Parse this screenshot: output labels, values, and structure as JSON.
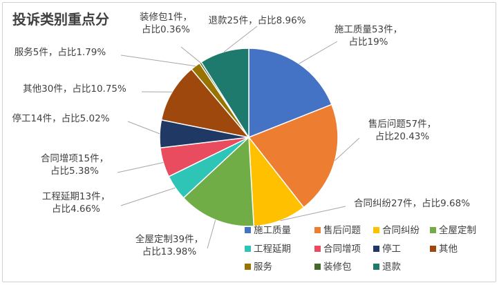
{
  "chart_data": {
    "type": "pie",
    "title": "投诉类别重点分",
    "slices": [
      {
        "name": "施工质量",
        "value": 53,
        "percent": 19,
        "label_lines": [
          "施工质量53件，",
          "占比19%"
        ],
        "color": "#4472C4"
      },
      {
        "name": "售后问题",
        "value": 57,
        "percent": 20.43,
        "label_lines": [
          "售后问题57件，",
          "占比20.43%"
        ],
        "color": "#ED7D31"
      },
      {
        "name": "合同纠纷",
        "value": 27,
        "percent": 9.68,
        "label_lines": [
          "合同纠纷27件，占比9.68%"
        ],
        "color": "#FFC000"
      },
      {
        "name": "全屋定制",
        "value": 39,
        "percent": 13.98,
        "label_lines": [
          "全屋定制39件，",
          "占比13.98%"
        ],
        "color": "#70AD47"
      },
      {
        "name": "工程延期",
        "value": 13,
        "percent": 4.66,
        "label_lines": [
          "工程延期13件，",
          "占比4.66%"
        ],
        "color": "#2EC4B6"
      },
      {
        "name": "合同增项",
        "value": 15,
        "percent": 5.38,
        "label_lines": [
          "合同增项15件，",
          "占比5.38%"
        ],
        "color": "#E94B5F"
      },
      {
        "name": "停工",
        "value": 14,
        "percent": 5.02,
        "label_lines": [
          "停工14件，占比5.02%"
        ],
        "color": "#203864"
      },
      {
        "name": "其他",
        "value": 30,
        "percent": 10.75,
        "label_lines": [
          "其他30件，占比10.75%"
        ],
        "color": "#9E480E"
      },
      {
        "name": "服务",
        "value": 5,
        "percent": 1.79,
        "label_lines": [
          "服务5件，占比1.79%"
        ],
        "color": "#997300"
      },
      {
        "name": "装修包",
        "value": 1,
        "percent": 0.36,
        "label_lines": [
          "装修包1件，",
          "占比0.36%"
        ],
        "color": "#43682B"
      },
      {
        "name": "退款",
        "value": 25,
        "percent": 8.96,
        "label_lines": [
          "退款25件，占比8.96%"
        ],
        "color": "#1F7A6E"
      }
    ],
    "legend": [
      "施工质量",
      "售后问题",
      "合同纠纷",
      "全屋定制",
      "工程延期",
      "合同增项",
      "停工",
      "其他",
      "服务",
      "装修包",
      "退款"
    ],
    "legend_position": "bottom-right"
  }
}
